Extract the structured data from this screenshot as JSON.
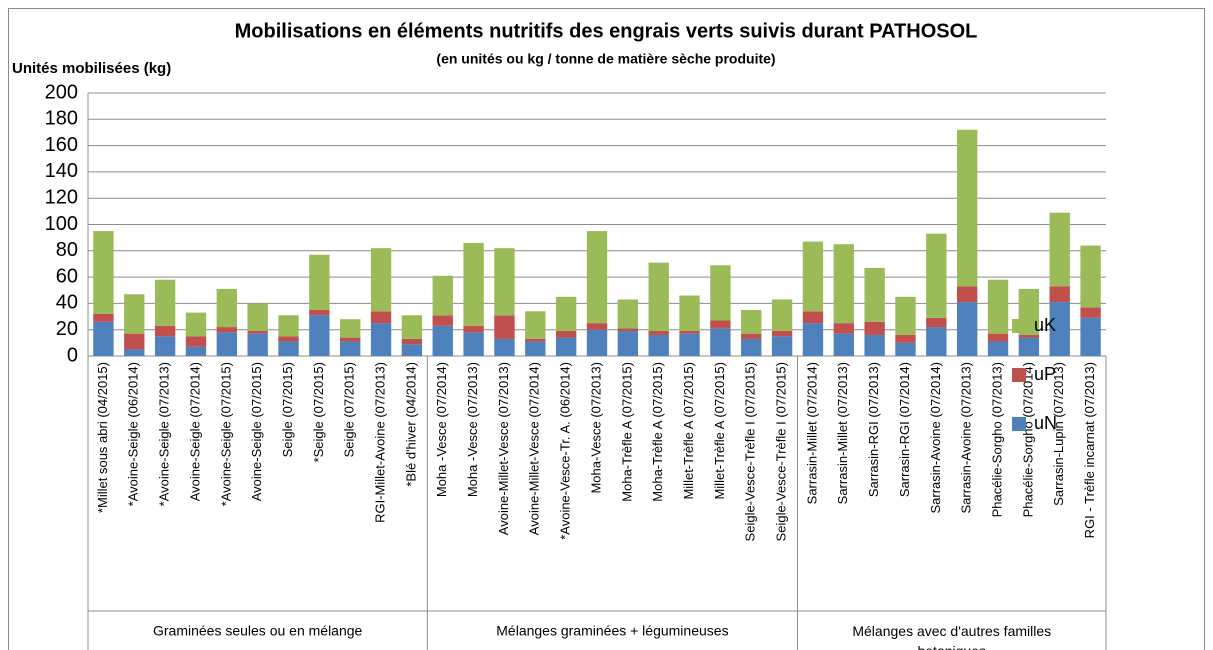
{
  "chart_data": {
    "type": "stacked_bar",
    "title": "Mobilisations en éléments nutritifs des engrais verts suivis durant PATHOSOL",
    "subtitle": "(en unités ou kg / tonne de matière sèche produite)",
    "y_label": "Unités mobilisées (kg)",
    "groups": [
      {
        "label": "Graminées seules ou en mélange",
        "categories": [
          "*Millet sous abri (04/2015)",
          "*Avoine-Seigle (06/2014)",
          "*Avoine-Seigle (07/2013)",
          "Avoine-Seigle (07/2014)",
          "*Avoine-Seigle (07/2015)",
          "Avoine-Seigle (07/2015)",
          "Seigle (07/2015)",
          "*Seigle (07/2015)",
          "Seigle (07/2015)",
          "RGI-Millet-Avoine (07/2013)",
          "*Blé d'hiver (04/2014)"
        ]
      },
      {
        "label": "Mélanges graminées + légumineuses",
        "categories": [
          "Moha -Vesce (07/2014)",
          "Moha -Vesce (07/2013)",
          "Avoine-Millet-Vesce (07/2013)",
          "Avoine-Millet-Vesce (07/2014)",
          "*Avoine-Vesce-Tr. A. (06/2014)",
          "Moha-Vesce (07/2013)",
          "Moha-Trèfle A (07/2015)",
          "Moha-Trèfle A (07/2015)",
          "Millet-Trèfle A (07/2015)",
          "Millet-Trèfle A (07/2015)",
          "Seigle-Vesce-Trèfle I (07/2015)",
          "Seigle-Vesce-Trèfle I (07/2015)"
        ]
      },
      {
        "label": "Mélanges avec d'autres familles botaniques",
        "categories": [
          "Sarrasin-Millet (07/2014)",
          "Sarrasin-Millet (07/2013)",
          "Sarrasin-RGI (07/2013)",
          "Sarrasin-RGI (07/2014)",
          "Sarrasin-Avoine (07/2014)",
          "Sarrasin-Avoine (07/2013)",
          "Phacélie-Sorgho (07/2013)",
          "Phacélie-Sorgho (07/2014)",
          "Sarrasin-Lupin (07/2013)",
          "RGI - Trèfle incarnat (07/2013)"
        ]
      }
    ],
    "series": [
      {
        "name": "uN",
        "color": "#4f81bd",
        "values": [
          26,
          5,
          15,
          7,
          18,
          17,
          11,
          31,
          11,
          25,
          9,
          23,
          18,
          13,
          11,
          14,
          20,
          19,
          16,
          17,
          21,
          13,
          15,
          25,
          17,
          16,
          10,
          22,
          41,
          11,
          14,
          41,
          29
        ]
      },
      {
        "name": "uP",
        "color": "#c0504d",
        "values": [
          6,
          12,
          8,
          8,
          4,
          2,
          4,
          4,
          3,
          9,
          4,
          8,
          5,
          18,
          2,
          5,
          5,
          2,
          3,
          2,
          6,
          4,
          4,
          9,
          8,
          10,
          6,
          7,
          12,
          6,
          2,
          12,
          8
        ]
      },
      {
        "name": "uK",
        "color": "#9bbb59",
        "values": [
          63,
          30,
          35,
          18,
          29,
          21,
          16,
          42,
          14,
          48,
          18,
          30,
          63,
          51,
          21,
          26,
          70,
          22,
          52,
          27,
          42,
          18,
          24,
          53,
          60,
          41,
          29,
          64,
          119,
          41,
          35,
          56,
          47
        ]
      }
    ],
    "ylim": [
      0,
      200
    ],
    "yticks": [
      0,
      20,
      40,
      60,
      80,
      100,
      120,
      140,
      160,
      180,
      200
    ],
    "grid": true,
    "legend": "right"
  }
}
